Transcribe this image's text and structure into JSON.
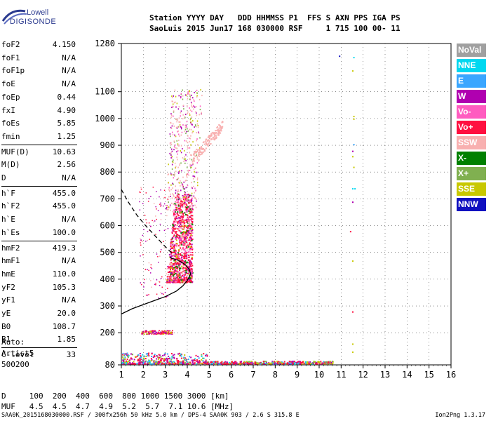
{
  "logo": {
    "line1": "Lowell",
    "line2": "DIGISONDE"
  },
  "header": {
    "line1": "Station YYYY DAY   DDD HHMMSS P1  FFS S AXN PPS IGA PS",
    "line2": "SaoLuis 2015 Jun17 168 030000 RSF     1 715 100 00- 11"
  },
  "params": {
    "group1": [
      {
        "k": "foF2",
        "v": "4.150"
      },
      {
        "k": "foF1",
        "v": "N/A"
      },
      {
        "k": "foF1p",
        "v": "N/A"
      },
      {
        "k": "foE",
        "v": "N/A"
      },
      {
        "k": "foEp",
        "v": "0.44"
      },
      {
        "k": "fxI",
        "v": "4.90"
      },
      {
        "k": "foEs",
        "v": "5.85"
      },
      {
        "k": "fmin",
        "v": "1.25"
      }
    ],
    "group2": [
      {
        "k": "MUF(D)",
        "v": "10.63"
      },
      {
        "k": "M(D)",
        "v": "2.56"
      },
      {
        "k": "D",
        "v": "N/A"
      }
    ],
    "group3": [
      {
        "k": "h`F",
        "v": "455.0"
      },
      {
        "k": "h`F2",
        "v": "455.0"
      },
      {
        "k": "h`E",
        "v": "N/A"
      },
      {
        "k": "h`Es",
        "v": "100.0"
      }
    ],
    "group4": [
      {
        "k": "hmF2",
        "v": "419.3"
      },
      {
        "k": "hmF1",
        "v": "N/A"
      },
      {
        "k": "hmE",
        "v": "110.0"
      },
      {
        "k": "yF2",
        "v": "105.3"
      },
      {
        "k": "yF1",
        "v": "N/A"
      },
      {
        "k": "yE",
        "v": "20.0"
      },
      {
        "k": "B0",
        "v": "108.7"
      },
      {
        "k": "B1",
        "v": "1.85"
      }
    ],
    "group5": [
      {
        "k": "C-level",
        "v": "33"
      }
    ]
  },
  "auto": {
    "l1": "Auto:",
    "l2": "Artist5",
    "l3": "500200"
  },
  "legend": [
    {
      "label": "NoVal",
      "color": "#a0a0a0"
    },
    {
      "label": "NNE",
      "color": "#00d8f0"
    },
    {
      "label": "E",
      "color": "#3aa6ff"
    },
    {
      "label": "W",
      "color": "#b000b0"
    },
    {
      "label": "Vo-",
      "color": "#ff5cc0"
    },
    {
      "label": "Vo+",
      "color": "#ff1040"
    },
    {
      "label": "SSW",
      "color": "#f8b0b0"
    },
    {
      "label": "X-",
      "color": "#008000"
    },
    {
      "label": "X+",
      "color": "#80b050"
    },
    {
      "label": "SSE",
      "color": "#c8c800"
    },
    {
      "label": "NNW",
      "color": "#1010c0"
    }
  ],
  "footer": {
    "line1": "D     100  200  400  600  800 1000 1500 3000 [km]",
    "line2": "MUF   4.5  4.5  4.7  4.9  5.2  5.7  7.1 10.6 [MHz]",
    "file": "SAA0K_2015168030000.RSF / 300fx256h 50 kHz 5.0 km / DPS-4 SAA0K 903 / 2.6 S 315.8 E",
    "version": "Ion2Png 1.3.17"
  },
  "chart_data": {
    "type": "scatter",
    "xlim": [
      1,
      16
    ],
    "ylim": [
      80,
      1280
    ],
    "x_ticks": [
      "1",
      "2",
      "3",
      "4",
      "5",
      "6",
      "7",
      "8",
      "9",
      "10",
      "11",
      "12",
      "13",
      "14",
      "15",
      "16"
    ],
    "y_ticks": [
      "80",
      "200",
      "300",
      "400",
      "500",
      "600",
      "700",
      "800",
      "900",
      "1000",
      "1100",
      "1280"
    ],
    "profile_curve": [
      [
        1.0,
        270
      ],
      [
        1.5,
        290
      ],
      [
        2.0,
        305
      ],
      [
        2.5,
        320
      ],
      [
        3.0,
        335
      ],
      [
        3.5,
        355
      ],
      [
        3.8,
        375
      ],
      [
        4.0,
        395
      ],
      [
        4.15,
        419.3
      ],
      [
        4.1,
        435
      ],
      [
        3.9,
        455
      ],
      [
        3.6,
        470
      ],
      [
        3.2,
        480
      ]
    ],
    "profile_dashed": [
      [
        1.0,
        735
      ],
      [
        1.3,
        690
      ],
      [
        1.7,
        640
      ],
      [
        2.1,
        600
      ],
      [
        2.5,
        565
      ],
      [
        2.9,
        530
      ],
      [
        3.2,
        505
      ],
      [
        3.4,
        490
      ]
    ],
    "clusters": [
      {
        "name": "F2 trace",
        "x": [
          3.0,
          4.2
        ],
        "y": [
          400,
          700
        ],
        "colors": [
          "Vo+",
          "Vo-",
          "W",
          "X-",
          "SSE",
          "SSW"
        ]
      },
      {
        "name": "F2 upper spread",
        "x": [
          3.0,
          4.6
        ],
        "y": [
          700,
          1100
        ],
        "colors": [
          "SSW",
          "W",
          "Vo-",
          "SSE"
        ]
      },
      {
        "name": "oblique",
        "x": [
          4.2,
          5.5
        ],
        "y": [
          850,
          990
        ],
        "colors": [
          "SSW"
        ]
      },
      {
        "name": "E region low",
        "x": [
          1.0,
          10.5
        ],
        "y": [
          85,
          100
        ],
        "colors": [
          "Vo+",
          "W",
          "SSE",
          "E",
          "NNE",
          "X+"
        ]
      },
      {
        "name": "Es 200km",
        "x": [
          1.9,
          3.3
        ],
        "y": [
          195,
          215
        ],
        "colors": [
          "Vo+",
          "W",
          "SSE"
        ]
      },
      {
        "name": "column 11.5",
        "x": [
          11.5,
          11.6
        ],
        "y": [
          100,
          1240
        ],
        "colors": [
          "NNE",
          "SSE",
          "W",
          "Vo+"
        ]
      }
    ]
  }
}
